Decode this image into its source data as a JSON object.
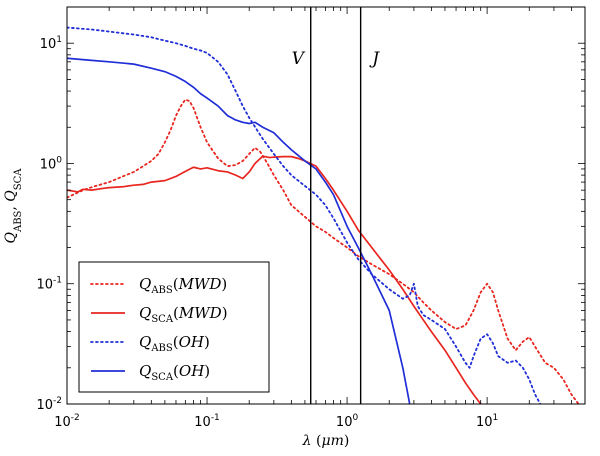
{
  "chart_data": {
    "type": "line",
    "title": "",
    "xlabel": "λ (μm)",
    "ylabel": "Q_ABS, Q_SCA",
    "xscale": "log",
    "yscale": "log",
    "xlim": [
      0.01,
      50
    ],
    "ylim": [
      0.01,
      20
    ],
    "x_ticks": [
      {
        "value": 0.01,
        "base": "10",
        "exp": "-2"
      },
      {
        "value": 0.1,
        "base": "10",
        "exp": "-1"
      },
      {
        "value": 1,
        "base": "10",
        "exp": "0"
      },
      {
        "value": 10,
        "base": "10",
        "exp": "1"
      }
    ],
    "y_ticks": [
      {
        "value": 0.01,
        "base": "10",
        "exp": "-2"
      },
      {
        "value": 0.1,
        "base": "10",
        "exp": "-1"
      },
      {
        "value": 1,
        "base": "10",
        "exp": "0"
      },
      {
        "value": 10,
        "base": "10",
        "exp": "1"
      }
    ],
    "vertical_lines": [
      {
        "label": "V",
        "x": 0.55
      },
      {
        "label": "J",
        "x": 1.25
      }
    ],
    "legend_position": "lower-left",
    "series": [
      {
        "name": "Q_ABS(MWD)",
        "label_base": "Q",
        "label_sub": "ABS",
        "label_arg": "MWD",
        "color": "#e8261f",
        "style": "dotted",
        "points": [
          [
            0.01,
            0.52
          ],
          [
            0.013,
            0.6
          ],
          [
            0.016,
            0.65
          ],
          [
            0.02,
            0.7
          ],
          [
            0.025,
            0.78
          ],
          [
            0.03,
            0.85
          ],
          [
            0.035,
            0.95
          ],
          [
            0.04,
            1.05
          ],
          [
            0.045,
            1.2
          ],
          [
            0.05,
            1.5
          ],
          [
            0.055,
            1.9
          ],
          [
            0.06,
            2.5
          ],
          [
            0.065,
            3.0
          ],
          [
            0.07,
            3.4
          ],
          [
            0.075,
            3.3
          ],
          [
            0.08,
            2.9
          ],
          [
            0.09,
            2.0
          ],
          [
            0.1,
            1.5
          ],
          [
            0.12,
            1.1
          ],
          [
            0.14,
            0.95
          ],
          [
            0.16,
            0.97
          ],
          [
            0.18,
            1.05
          ],
          [
            0.2,
            1.2
          ],
          [
            0.22,
            1.35
          ],
          [
            0.24,
            1.25
          ],
          [
            0.27,
            1.0
          ],
          [
            0.3,
            0.8
          ],
          [
            0.35,
            0.6
          ],
          [
            0.4,
            0.45
          ],
          [
            0.5,
            0.36
          ],
          [
            0.6,
            0.3
          ],
          [
            0.7,
            0.27
          ],
          [
            0.8,
            0.24
          ],
          [
            1.0,
            0.2
          ],
          [
            1.2,
            0.17
          ],
          [
            1.5,
            0.145
          ],
          [
            2.0,
            0.12
          ],
          [
            2.5,
            0.1
          ],
          [
            3.0,
            0.085
          ],
          [
            3.5,
            0.07
          ],
          [
            4.0,
            0.06
          ],
          [
            5.0,
            0.048
          ],
          [
            6.0,
            0.042
          ],
          [
            7.0,
            0.045
          ],
          [
            8.0,
            0.06
          ],
          [
            9.0,
            0.085
          ],
          [
            10.0,
            0.1
          ],
          [
            11.0,
            0.085
          ],
          [
            12.0,
            0.06
          ],
          [
            14.0,
            0.035
          ],
          [
            16.0,
            0.028
          ],
          [
            18.0,
            0.033
          ],
          [
            20.0,
            0.036
          ],
          [
            22.0,
            0.03
          ],
          [
            26.0,
            0.022
          ],
          [
            30.0,
            0.02
          ],
          [
            35.0,
            0.016
          ],
          [
            40.0,
            0.012
          ],
          [
            45.0,
            0.01
          ]
        ]
      },
      {
        "name": "Q_SCA(MWD)",
        "label_base": "Q",
        "label_sub": "SCA",
        "label_arg": "MWD",
        "color": "#e8261f",
        "style": "solid",
        "points": [
          [
            0.01,
            0.6
          ],
          [
            0.012,
            0.58
          ],
          [
            0.013,
            0.61
          ],
          [
            0.015,
            0.6
          ],
          [
            0.018,
            0.62
          ],
          [
            0.02,
            0.63
          ],
          [
            0.025,
            0.64
          ],
          [
            0.03,
            0.66
          ],
          [
            0.035,
            0.67
          ],
          [
            0.04,
            0.7
          ],
          [
            0.05,
            0.72
          ],
          [
            0.06,
            0.78
          ],
          [
            0.07,
            0.86
          ],
          [
            0.08,
            0.93
          ],
          [
            0.09,
            0.9
          ],
          [
            0.1,
            0.92
          ],
          [
            0.12,
            0.87
          ],
          [
            0.14,
            0.85
          ],
          [
            0.16,
            0.8
          ],
          [
            0.18,
            0.75
          ],
          [
            0.2,
            0.85
          ],
          [
            0.22,
            1.0
          ],
          [
            0.25,
            1.15
          ],
          [
            0.28,
            1.12
          ],
          [
            0.3,
            1.13
          ],
          [
            0.35,
            1.14
          ],
          [
            0.4,
            1.14
          ],
          [
            0.45,
            1.1
          ],
          [
            0.5,
            1.05
          ],
          [
            0.6,
            0.95
          ],
          [
            0.7,
            0.75
          ],
          [
            0.8,
            0.6
          ],
          [
            1.0,
            0.4
          ],
          [
            1.2,
            0.28
          ],
          [
            1.5,
            0.2
          ],
          [
            2.0,
            0.13
          ],
          [
            2.5,
            0.09
          ],
          [
            3.0,
            0.065
          ],
          [
            3.5,
            0.05
          ],
          [
            4.0,
            0.04
          ],
          [
            5.0,
            0.028
          ],
          [
            6.0,
            0.02
          ],
          [
            7.0,
            0.015
          ],
          [
            8.0,
            0.012
          ],
          [
            9.0,
            0.01
          ]
        ]
      },
      {
        "name": "Q_ABS(OH)",
        "label_base": "Q",
        "label_sub": "ABS",
        "label_arg": "OH",
        "color": "#1f2ed6",
        "style": "dotted",
        "points": [
          [
            0.01,
            13.5
          ],
          [
            0.015,
            13.0
          ],
          [
            0.02,
            12.5
          ],
          [
            0.03,
            11.8
          ],
          [
            0.04,
            11.2
          ],
          [
            0.05,
            10.5
          ],
          [
            0.06,
            10.0
          ],
          [
            0.07,
            9.5
          ],
          [
            0.08,
            9.0
          ],
          [
            0.09,
            8.7
          ],
          [
            0.1,
            8.3
          ],
          [
            0.12,
            7.0
          ],
          [
            0.14,
            5.5
          ],
          [
            0.16,
            4.0
          ],
          [
            0.18,
            3.0
          ],
          [
            0.2,
            2.4
          ],
          [
            0.25,
            1.6
          ],
          [
            0.3,
            1.2
          ],
          [
            0.35,
            0.95
          ],
          [
            0.4,
            0.8
          ],
          [
            0.5,
            0.65
          ],
          [
            0.6,
            0.55
          ],
          [
            0.7,
            0.45
          ],
          [
            0.8,
            0.35
          ],
          [
            1.0,
            0.22
          ],
          [
            1.2,
            0.16
          ],
          [
            1.5,
            0.12
          ],
          [
            2.0,
            0.09
          ],
          [
            2.5,
            0.075
          ],
          [
            2.8,
            0.08
          ],
          [
            3.0,
            0.1
          ],
          [
            3.2,
            0.065
          ],
          [
            3.5,
            0.055
          ],
          [
            4.0,
            0.05
          ],
          [
            5.0,
            0.042
          ],
          [
            6.0,
            0.03
          ],
          [
            7.0,
            0.022
          ],
          [
            7.5,
            0.02
          ],
          [
            8.0,
            0.025
          ],
          [
            9.0,
            0.035
          ],
          [
            10.0,
            0.038
          ],
          [
            11.0,
            0.032
          ],
          [
            12.0,
            0.025
          ],
          [
            14.0,
            0.022
          ],
          [
            16.0,
            0.023
          ],
          [
            18.0,
            0.02
          ],
          [
            20.0,
            0.016
          ],
          [
            22.0,
            0.012
          ],
          [
            24.0,
            0.01
          ]
        ]
      },
      {
        "name": "Q_SCA(OH)",
        "label_base": "Q",
        "label_sub": "SCA",
        "label_arg": "OH",
        "color": "#1f2ed6",
        "style": "solid",
        "points": [
          [
            0.01,
            7.5
          ],
          [
            0.015,
            7.2
          ],
          [
            0.02,
            7.0
          ],
          [
            0.03,
            6.7
          ],
          [
            0.04,
            6.2
          ],
          [
            0.05,
            5.8
          ],
          [
            0.06,
            5.3
          ],
          [
            0.07,
            4.8
          ],
          [
            0.08,
            4.3
          ],
          [
            0.09,
            3.8
          ],
          [
            0.1,
            3.5
          ],
          [
            0.12,
            3.0
          ],
          [
            0.14,
            2.5
          ],
          [
            0.16,
            2.3
          ],
          [
            0.18,
            2.2
          ],
          [
            0.2,
            2.15
          ],
          [
            0.22,
            2.2
          ],
          [
            0.25,
            2.0
          ],
          [
            0.3,
            1.8
          ],
          [
            0.35,
            1.5
          ],
          [
            0.4,
            1.3
          ],
          [
            0.5,
            1.05
          ],
          [
            0.6,
            0.9
          ],
          [
            0.7,
            0.7
          ],
          [
            0.8,
            0.55
          ],
          [
            1.0,
            0.3
          ],
          [
            1.2,
            0.2
          ],
          [
            1.5,
            0.12
          ],
          [
            2.0,
            0.06
          ],
          [
            2.5,
            0.02
          ],
          [
            2.8,
            0.01
          ]
        ]
      }
    ]
  }
}
